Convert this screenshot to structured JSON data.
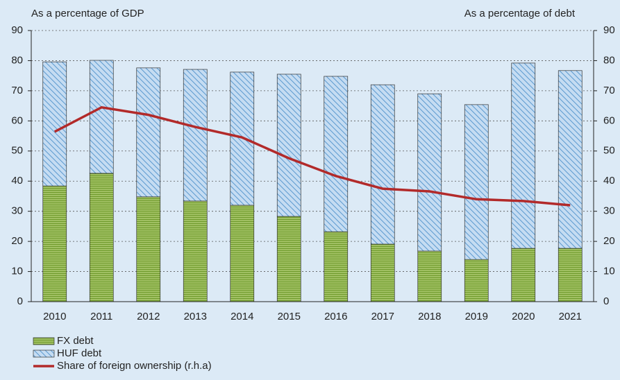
{
  "chart_data": {
    "type": "bar",
    "y_label": "As a percentage of GDP",
    "y2_label": "As a percentage of debt",
    "categories": [
      "2010",
      "2011",
      "2012",
      "2013",
      "2014",
      "2015",
      "2016",
      "2017",
      "2018",
      "2019",
      "2020",
      "2021"
    ],
    "series": [
      {
        "name": "FX debt",
        "type": "bar",
        "color": "#8bb34a",
        "values": [
          38.4,
          42.6,
          34.8,
          33.4,
          32.0,
          28.3,
          23.2,
          19.1,
          16.8,
          14.0,
          17.7,
          17.7
        ]
      },
      {
        "name": "HUF debt",
        "type": "bar",
        "color": "#b8d4ee",
        "values": [
          41.2,
          37.5,
          42.8,
          43.7,
          44.2,
          47.2,
          51.6,
          52.9,
          52.2,
          51.4,
          61.5,
          59.0
        ]
      },
      {
        "name": "Share of foreign ownership (r.h.a)",
        "type": "line",
        "axis": "y2",
        "color": "#b22a2a",
        "values": [
          56.4,
          64.5,
          62.0,
          58.0,
          54.5,
          47.6,
          41.7,
          37.5,
          36.6,
          34.0,
          33.4,
          32.0
        ]
      }
    ],
    "stacked": true,
    "ylim": [
      0,
      90
    ],
    "yticks": [
      0,
      10,
      20,
      30,
      40,
      50,
      60,
      70,
      80,
      90
    ],
    "y2lim": [
      0,
      90
    ],
    "y2ticks": [
      0,
      10,
      20,
      30,
      40,
      50,
      60,
      70,
      80,
      90
    ],
    "grid": true,
    "legend": "bottom"
  }
}
